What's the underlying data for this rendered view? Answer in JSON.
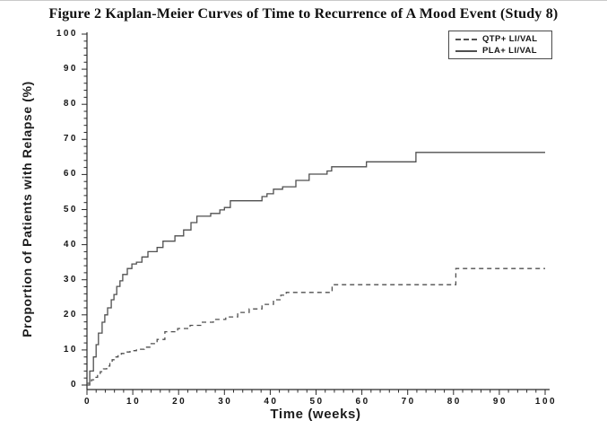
{
  "figure": {
    "title": "Figure 2 Kaplan-Meier Curves of Time to Recurrence of A Mood Event (Study 8)"
  },
  "chart_data": {
    "type": "line",
    "subtype": "kaplan-meier-step",
    "title": "Figure 2 Kaplan-Meier Curves of Time to Recurrence of A Mood Event (Study 8)",
    "xlabel": "Time (weeks)",
    "ylabel": "Proportion of Patients with Relapse (%)",
    "xlim": [
      0,
      100
    ],
    "ylim": [
      0,
      100
    ],
    "x_major_ticks": [
      0,
      10,
      20,
      30,
      40,
      50,
      60,
      70,
      80,
      90,
      100
    ],
    "y_major_ticks": [
      0,
      10,
      20,
      30,
      40,
      50,
      60,
      70,
      80,
      90,
      100
    ],
    "minor_tick_interval": 2,
    "grid": false,
    "legend_position": "top-right",
    "axis_color": "#2b2b2b",
    "series": [
      {
        "name": "QTP+ LI/VAL",
        "line_style": "dashed",
        "color": "#4f4f4f",
        "points": [
          [
            0,
            0
          ],
          [
            0.6,
            0.8
          ],
          [
            1.0,
            1.5
          ],
          [
            1.6,
            2.2
          ],
          [
            2.3,
            3.0
          ],
          [
            2.9,
            3.8
          ],
          [
            3.6,
            4.6
          ],
          [
            4.3,
            5.4
          ],
          [
            5.0,
            6.3
          ],
          [
            5.5,
            7.2
          ],
          [
            6.2,
            8.0
          ],
          [
            6.8,
            8.6
          ],
          [
            7.5,
            9.0
          ],
          [
            8.2,
            9.4
          ],
          [
            9.4,
            9.8
          ],
          [
            10.8,
            10.2
          ],
          [
            12.5,
            10.8
          ],
          [
            14.0,
            11.8
          ],
          [
            15.3,
            13.0
          ],
          [
            17.0,
            15.2
          ],
          [
            19.8,
            16.1
          ],
          [
            22.5,
            17.0
          ],
          [
            25.0,
            17.9
          ],
          [
            27.6,
            18.7
          ],
          [
            30.3,
            19.4
          ],
          [
            32.9,
            20.7
          ],
          [
            35.4,
            21.7
          ],
          [
            38.2,
            23.0
          ],
          [
            40.7,
            24.3
          ],
          [
            42.3,
            25.6
          ],
          [
            43.5,
            26.4
          ],
          [
            53.5,
            28.6
          ],
          [
            80.5,
            33.2
          ],
          [
            100,
            33.2
          ]
        ]
      },
      {
        "name": "PLA+ LI/VAL",
        "line_style": "solid",
        "color": "#4f4f4f",
        "points": [
          [
            0,
            0.5
          ],
          [
            0.6,
            4.0
          ],
          [
            1.4,
            8.0
          ],
          [
            2.0,
            11.5
          ],
          [
            2.5,
            14.8
          ],
          [
            3.3,
            17.9
          ],
          [
            3.9,
            20.0
          ],
          [
            4.5,
            22.0
          ],
          [
            5.3,
            24.3
          ],
          [
            5.9,
            25.8
          ],
          [
            6.5,
            28.1
          ],
          [
            7.2,
            29.7
          ],
          [
            7.8,
            31.5
          ],
          [
            8.8,
            33.2
          ],
          [
            9.8,
            34.5
          ],
          [
            10.8,
            35.0
          ],
          [
            12.0,
            36.5
          ],
          [
            13.3,
            38.0
          ],
          [
            15.3,
            39.2
          ],
          [
            16.6,
            41.0
          ],
          [
            19.2,
            42.5
          ],
          [
            21.1,
            44.2
          ],
          [
            22.7,
            46.3
          ],
          [
            24.0,
            48.1
          ],
          [
            27.0,
            48.9
          ],
          [
            29.0,
            49.9
          ],
          [
            30.0,
            50.6
          ],
          [
            31.3,
            52.5
          ],
          [
            38.2,
            53.7
          ],
          [
            39.3,
            54.5
          ],
          [
            40.7,
            55.8
          ],
          [
            42.7,
            56.5
          ],
          [
            45.6,
            58.3
          ],
          [
            48.5,
            60.1
          ],
          [
            52.4,
            61.0
          ],
          [
            53.4,
            62.2
          ],
          [
            61.0,
            63.6
          ],
          [
            71.8,
            66.3
          ],
          [
            100,
            66.3
          ]
        ]
      }
    ]
  }
}
